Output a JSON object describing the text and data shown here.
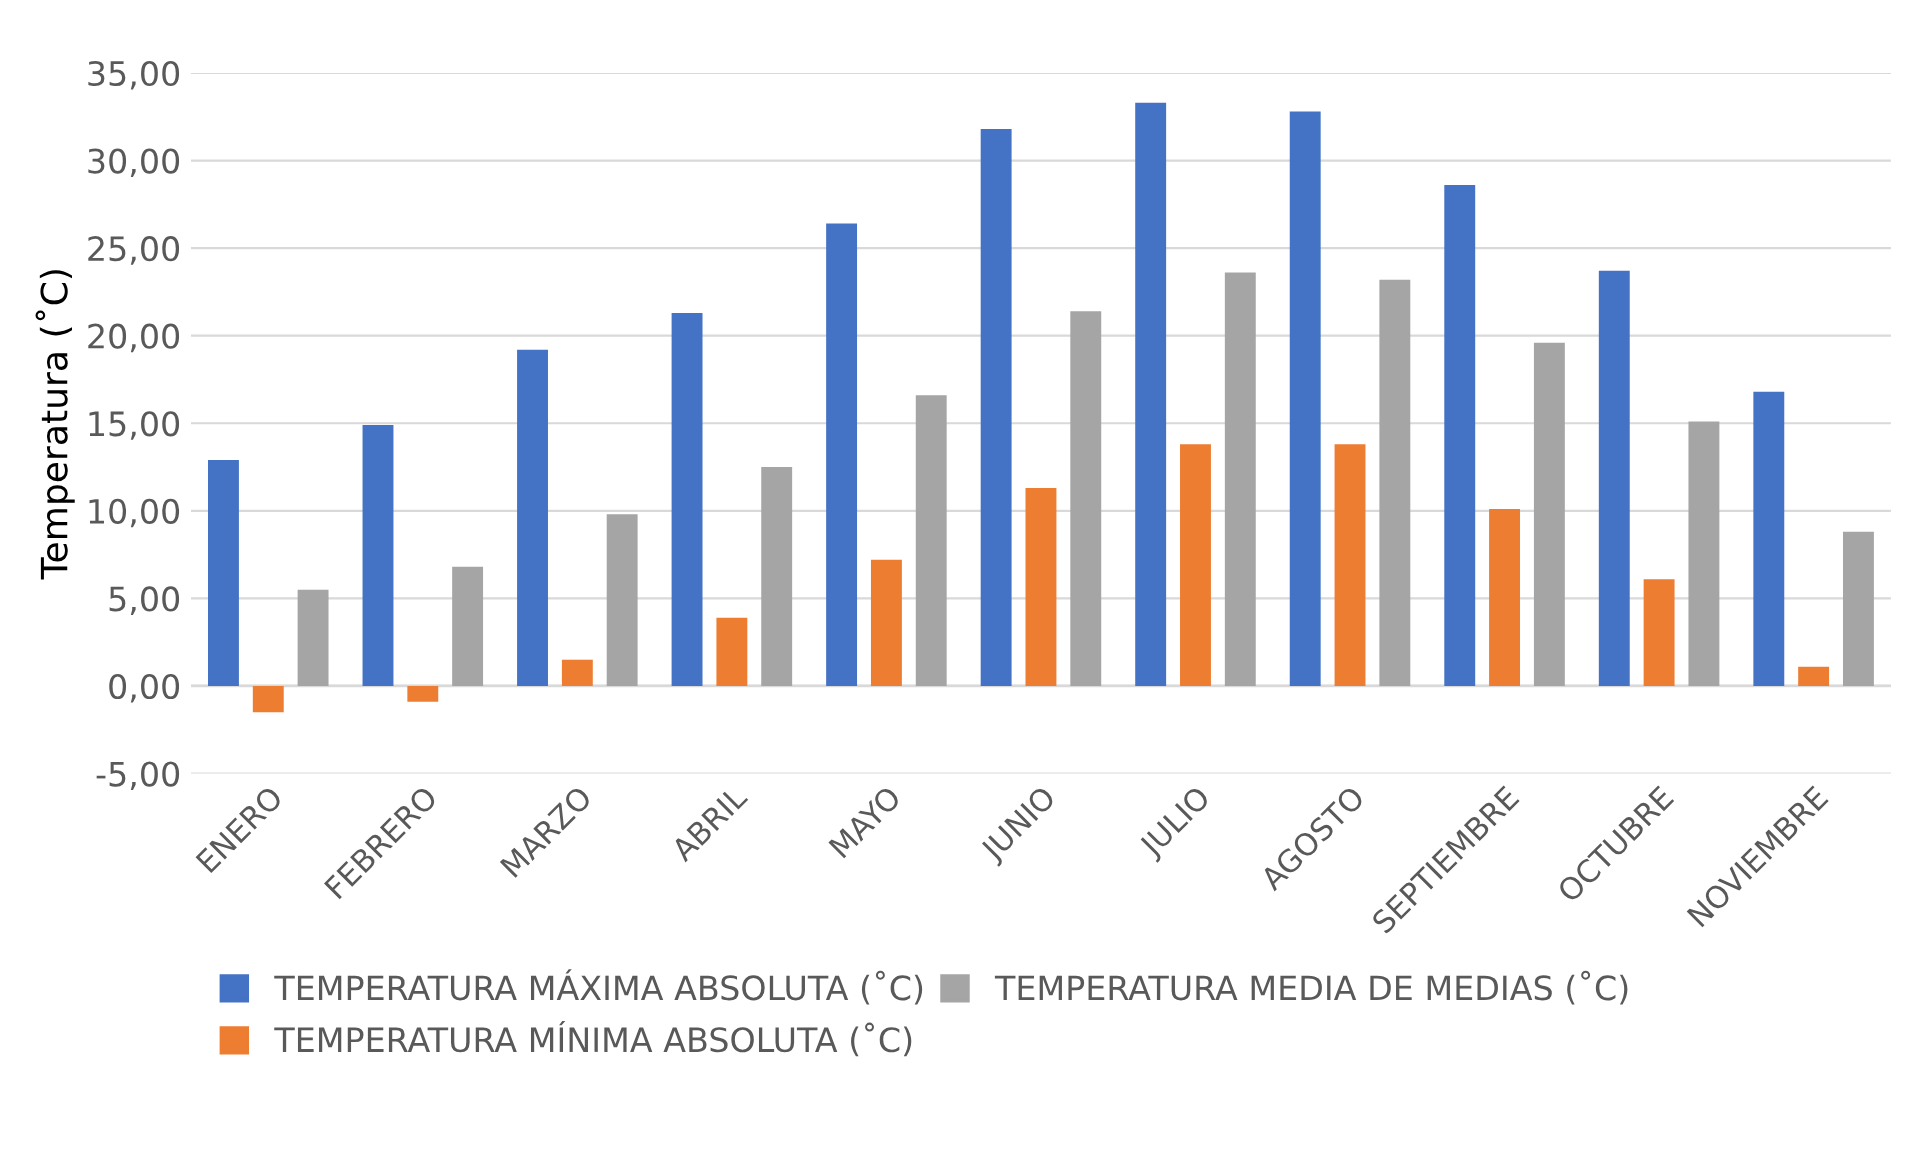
{
  "chart_data": {
    "type": "bar",
    "ylabel": "Temperatura (˚C)",
    "categories": [
      "ENERO",
      "FEBRERO",
      "MARZO",
      "ABRIL",
      "MAYO",
      "JUNIO",
      "JULIO",
      "AGOSTO",
      "SEPTIEMBRE",
      "OCTUBRE",
      "NOVIEMBRE"
    ],
    "series": [
      {
        "name": "TEMPERATURA MÁXIMA ABSOLUTA (˚C)",
        "color": "#4472c4",
        "values": [
          12.9,
          14.9,
          19.2,
          21.3,
          26.4,
          31.8,
          33.3,
          32.8,
          28.6,
          23.7,
          16.8
        ]
      },
      {
        "name": "TEMPERATURA MÍNIMA ABSOLUTA (˚C)",
        "color": "#ed7d31",
        "values": [
          -1.5,
          -0.9,
          1.5,
          3.9,
          7.2,
          11.3,
          13.8,
          13.8,
          10.1,
          6.1,
          1.1
        ]
      },
      {
        "name": "TEMPERATURA MEDIA DE MEDIAS (˚C)",
        "color": "#a5a5a5",
        "values": [
          5.5,
          6.8,
          9.8,
          12.5,
          16.6,
          21.4,
          23.6,
          23.2,
          19.6,
          15.1,
          8.8
        ]
      }
    ],
    "ylim": [
      -5,
      35
    ],
    "yticks": [
      {
        "value": -5,
        "label": "-5,00"
      },
      {
        "value": 0,
        "label": "0,00"
      },
      {
        "value": 5,
        "label": "5,00"
      },
      {
        "value": 10,
        "label": "10,00"
      },
      {
        "value": 15,
        "label": "15,00"
      },
      {
        "value": 20,
        "label": "20,00"
      },
      {
        "value": 25,
        "label": "25,00"
      },
      {
        "value": 30,
        "label": "30,00"
      },
      {
        "value": 35,
        "label": "35,00"
      }
    ],
    "grid": "y",
    "legend": "bottom"
  }
}
